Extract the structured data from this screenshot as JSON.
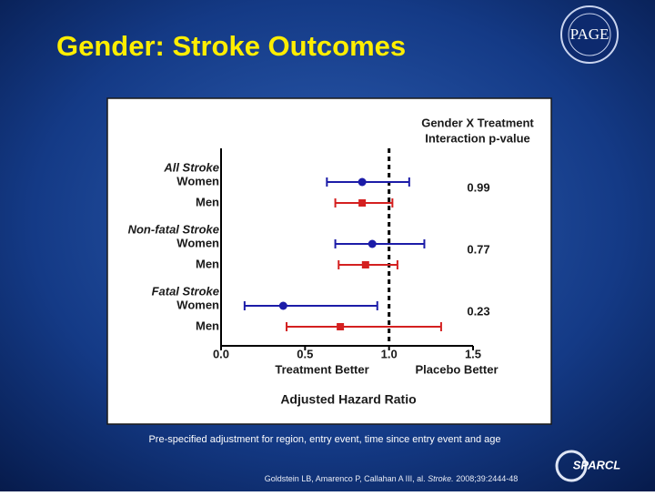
{
  "slide": {
    "title": "Gender: Stroke Outcomes",
    "footnote": "Pre-specified adjustment for region, entry event, time since entry event and age",
    "citation": {
      "authors": "Goldstein LB, Amarenco P, Callahan A III, al. ",
      "journal": "Stroke.",
      "details": " 2008;39:2444-48"
    },
    "logo_top": "PAGE",
    "logo_bottom": "SPARCL"
  },
  "chart_data": {
    "type": "forest",
    "groups": [
      "All Stroke",
      "Non-fatal Stroke",
      "Fatal Stroke"
    ],
    "series": [
      {
        "name": "Women",
        "color": "#1c1ca8",
        "marker": "circle",
        "values": [
          0.84,
          0.9,
          0.37
        ],
        "lower": [
          0.63,
          0.68,
          0.14
        ],
        "upper": [
          1.12,
          1.21,
          0.93
        ]
      },
      {
        "name": "Men",
        "color": "#d42020",
        "marker": "square",
        "values": [
          0.84,
          0.86,
          0.71
        ],
        "lower": [
          0.68,
          0.7,
          0.39
        ],
        "upper": [
          1.02,
          1.05,
          1.31
        ]
      }
    ],
    "p_value_header": [
      "Gender X Treatment",
      "Interaction p-value"
    ],
    "p_values": [
      0.99,
      0.77,
      0.23
    ],
    "xlim": [
      0,
      1.5
    ],
    "xticks": [
      {
        "value": 0,
        "label": "0.0"
      },
      0.5,
      {
        "value": 1,
        "label": "1.0"
      },
      1.5
    ],
    "reference": 1,
    "left_label": "Treatment Better",
    "right_label": "Placebo Better",
    "xlabel": "Adjusted Hazard Ratio"
  }
}
